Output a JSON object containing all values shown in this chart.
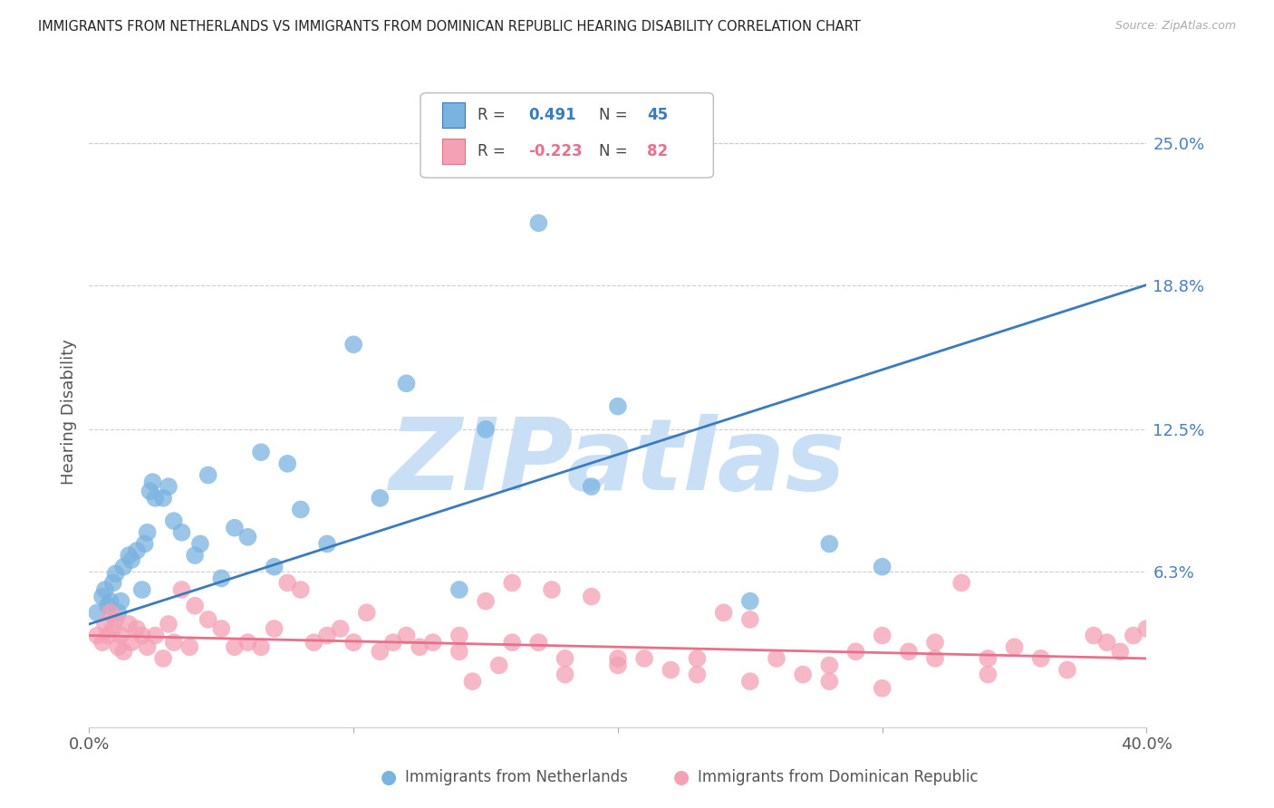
{
  "title": "IMMIGRANTS FROM NETHERLANDS VS IMMIGRANTS FROM DOMINICAN REPUBLIC HEARING DISABILITY CORRELATION CHART",
  "source": "Source: ZipAtlas.com",
  "ylabel": "Hearing Disability",
  "xlim": [
    0.0,
    40.0
  ],
  "ylim": [
    -0.5,
    27.0
  ],
  "yticks": [
    0.0,
    6.3,
    12.5,
    18.8,
    25.0
  ],
  "ytick_labels": [
    "",
    "6.3%",
    "12.5%",
    "18.8%",
    "25.0%"
  ],
  "xticks": [
    0.0,
    10.0,
    20.0,
    30.0,
    40.0
  ],
  "xtick_labels": [
    "0.0%",
    "",
    "",
    "",
    "40.0%"
  ],
  "blue_label": "Immigrants from Netherlands",
  "pink_label": "Immigrants from Dominican Republic",
  "blue_R": "0.491",
  "blue_N": "45",
  "pink_R": "-0.223",
  "pink_N": "82",
  "blue_color": "#7ab3e0",
  "pink_color": "#f4a0b5",
  "blue_line_color": "#3a7abf",
  "pink_line_color": "#e8708a",
  "watermark": "ZIPatlas",
  "watermark_color": "#c8dff5",
  "title_color": "#222222",
  "axis_label_color": "#4a7fbd",
  "source_color": "#aaaaaa",
  "background_color": "#ffffff",
  "grid_color": "#cccccc",
  "blue_line_start_y": 4.0,
  "blue_line_end_y": 18.8,
  "pink_line_start_y": 3.5,
  "pink_line_end_y": 2.5,
  "blue_scatter_x": [
    0.3,
    0.5,
    0.6,
    0.7,
    0.8,
    0.9,
    1.0,
    1.1,
    1.2,
    1.3,
    1.5,
    1.6,
    1.8,
    2.0,
    2.1,
    2.2,
    2.3,
    2.4,
    2.5,
    2.8,
    3.0,
    3.2,
    3.5,
    4.0,
    4.2,
    4.5,
    5.0,
    5.5,
    6.0,
    6.5,
    7.0,
    7.5,
    8.0,
    9.0,
    10.0,
    11.0,
    12.0,
    14.0,
    15.0,
    17.0,
    19.0,
    20.0,
    25.0,
    28.0,
    30.0
  ],
  "blue_scatter_y": [
    4.5,
    5.2,
    5.5,
    4.8,
    5.0,
    5.8,
    6.2,
    4.5,
    5.0,
    6.5,
    7.0,
    6.8,
    7.2,
    5.5,
    7.5,
    8.0,
    9.8,
    10.2,
    9.5,
    9.5,
    10.0,
    8.5,
    8.0,
    7.0,
    7.5,
    10.5,
    6.0,
    8.2,
    7.8,
    11.5,
    6.5,
    11.0,
    9.0,
    7.5,
    16.2,
    9.5,
    14.5,
    5.5,
    12.5,
    21.5,
    10.0,
    13.5,
    5.0,
    7.5,
    6.5
  ],
  "pink_scatter_x": [
    0.3,
    0.5,
    0.6,
    0.7,
    0.8,
    0.9,
    1.0,
    1.1,
    1.2,
    1.3,
    1.5,
    1.6,
    1.8,
    2.0,
    2.2,
    2.5,
    2.8,
    3.0,
    3.2,
    3.5,
    3.8,
    4.0,
    4.5,
    5.0,
    5.5,
    6.0,
    6.5,
    7.0,
    7.5,
    8.0,
    8.5,
    9.0,
    9.5,
    10.0,
    10.5,
    11.0,
    11.5,
    12.0,
    12.5,
    13.0,
    14.0,
    14.5,
    15.0,
    15.5,
    16.0,
    17.0,
    17.5,
    18.0,
    19.0,
    20.0,
    21.0,
    22.0,
    23.0,
    24.0,
    25.0,
    26.0,
    27.0,
    28.0,
    29.0,
    30.0,
    31.0,
    32.0,
    33.0,
    34.0,
    35.0,
    36.0,
    37.0,
    38.0,
    38.5,
    39.0,
    39.5,
    40.0,
    28.0,
    30.0,
    32.0,
    34.0,
    23.0,
    25.0,
    18.0,
    20.0,
    16.0,
    14.0
  ],
  "pink_scatter_y": [
    3.5,
    3.2,
    4.0,
    3.5,
    4.5,
    3.8,
    4.2,
    3.0,
    3.5,
    2.8,
    4.0,
    3.2,
    3.8,
    3.5,
    3.0,
    3.5,
    2.5,
    4.0,
    3.2,
    5.5,
    3.0,
    4.8,
    4.2,
    3.8,
    3.0,
    3.2,
    3.0,
    3.8,
    5.8,
    5.5,
    3.2,
    3.5,
    3.8,
    3.2,
    4.5,
    2.8,
    3.2,
    3.5,
    3.0,
    3.2,
    3.5,
    1.5,
    5.0,
    2.2,
    5.8,
    3.2,
    5.5,
    2.5,
    5.2,
    2.2,
    2.5,
    2.0,
    2.5,
    4.5,
    4.2,
    2.5,
    1.8,
    2.2,
    2.8,
    3.5,
    2.8,
    2.5,
    5.8,
    1.8,
    3.0,
    2.5,
    2.0,
    3.5,
    3.2,
    2.8,
    3.5,
    3.8,
    1.5,
    1.2,
    3.2,
    2.5,
    1.8,
    1.5,
    1.8,
    2.5,
    3.2,
    2.8
  ]
}
